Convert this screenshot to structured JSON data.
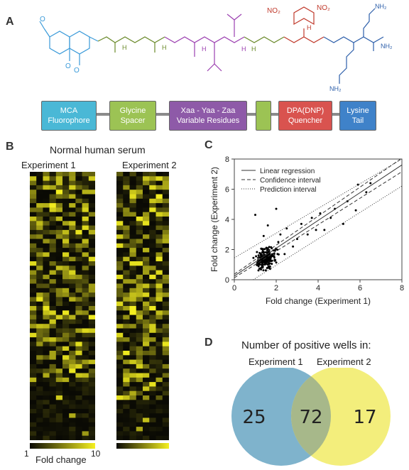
{
  "panels": {
    "a": "A",
    "b": "B",
    "c": "C",
    "d": "D"
  },
  "molecule": {
    "labels": {
      "methoxy": "O",
      "carbonyl_o": "O",
      "ring_o": "O",
      "nh": "H",
      "n": "N",
      "no2_left": "NO₂",
      "no2_right": "NO₂",
      "nh2_top": "NH₂",
      "nh2_right": "NH₂",
      "nh2_bottom": "NH₂"
    },
    "colors": {
      "mca": "#3a9ad9",
      "spacer": "#6a8a2a",
      "variable": "#9b3fb0",
      "quencher": "#c0392b",
      "lysine": "#2d5faa"
    }
  },
  "domain_boxes": [
    {
      "line1": "MCA",
      "line2": "Fluorophore",
      "color": "#4ab8d6"
    },
    {
      "line1": "Glycine",
      "line2": "Spacer",
      "color": "#9cc354"
    },
    {
      "line1": "Xaa - Yaa - Zaa",
      "line2": "Variable Residues",
      "color": "#8e5aa8"
    },
    {
      "line1": "",
      "line2": "",
      "color": "#9cc354"
    },
    {
      "line1": "DPA(DNP)",
      "line2": "Quencher",
      "color": "#d9534f"
    },
    {
      "line1": "Lysine",
      "line2": "Tail",
      "color": "#3f82c9"
    }
  ],
  "heatmap": {
    "title": "Normal human serum",
    "experiments": [
      "Experiment 1",
      "Experiment 2"
    ],
    "colorbar": {
      "min": "1",
      "max": "10",
      "label": "Fold change"
    },
    "colors": {
      "low": "#0a0a04",
      "high": "#f5f020"
    }
  },
  "chart_data": {
    "type": "scatter",
    "xlabel": "Fold change (Experiment 1)",
    "ylabel": "Fold change (Experiment 2)",
    "xlim": [
      0,
      8
    ],
    "ylim": [
      0,
      8
    ],
    "xticks": [
      "0",
      "2",
      "4",
      "6",
      "8"
    ],
    "yticks": [
      "0",
      "2",
      "4",
      "6",
      "8"
    ],
    "legend": [
      "Linear regression",
      "Confidence interval",
      "Prediction interval"
    ],
    "legend_position": "top-left",
    "regression": {
      "slope": 0.92,
      "intercept": 0.25
    },
    "outliers": [
      [
        1.0,
        4.3
      ],
      [
        1.6,
        3.6
      ],
      [
        2.0,
        4.7
      ],
      [
        2.5,
        3.4
      ],
      [
        3.2,
        3.7
      ],
      [
        3.5,
        3.0
      ],
      [
        3.7,
        4.1
      ],
      [
        4.1,
        4.4
      ],
      [
        4.3,
        3.3
      ],
      [
        4.6,
        4.1
      ],
      [
        5.2,
        3.7
      ],
      [
        5.4,
        5.2
      ],
      [
        5.8,
        4.6
      ],
      [
        5.9,
        6.3
      ],
      [
        6.5,
        6.4
      ],
      [
        6.3,
        5.8
      ],
      [
        1.4,
        2.9
      ],
      [
        2.2,
        3.0
      ],
      [
        2.8,
        2.2
      ],
      [
        3.0,
        2.7
      ],
      [
        2.4,
        1.7
      ],
      [
        3.9,
        3.3
      ],
      [
        4.8,
        4.7
      ],
      [
        2.1,
        2.5
      ]
    ],
    "cluster": {
      "center_x": 1.5,
      "center_y": 1.4,
      "count": 260
    }
  },
  "venn": {
    "title": "Number of positive wells in:",
    "labels": [
      "Experiment 1",
      "Experiment 2"
    ],
    "left_only": "25",
    "overlap": "72",
    "right_only": "17",
    "colors": {
      "left": "#7fb3cc",
      "right": "#f3ee7c",
      "overlap": "#a7b88a"
    }
  }
}
